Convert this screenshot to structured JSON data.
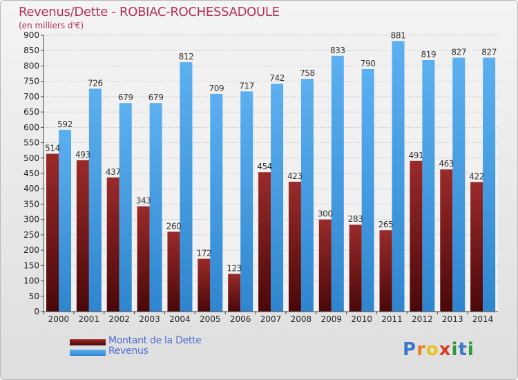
{
  "header": {
    "title": "Revenus/Dette - ROBIAC-ROCHESSADOULE",
    "subtitle": "(en milliers d'€)"
  },
  "chart_data": {
    "type": "bar",
    "title": "Revenus/Dette - ROBIAC-ROCHESSADOULE",
    "subtitle": "(en milliers d'€)",
    "xlabel": "",
    "ylabel": "",
    "ylim": [
      0,
      900
    ],
    "ytick_step": 50,
    "grid": true,
    "legend_position": "bottom-left",
    "categories": [
      "2000",
      "2001",
      "2002",
      "2003",
      "2004",
      "2005",
      "2006",
      "2007",
      "2008",
      "2009",
      "2010",
      "2011",
      "2012",
      "2013",
      "2014"
    ],
    "series": [
      {
        "name": "Montant de la Dette",
        "color": "#7a1b1b",
        "values": [
          514,
          493,
          437,
          343,
          260,
          172,
          123,
          454,
          423,
          300,
          283,
          265,
          491,
          463,
          422
        ]
      },
      {
        "name": "Revenus",
        "color": "#4fa3e8",
        "values": [
          592,
          726,
          679,
          679,
          812,
          709,
          717,
          742,
          758,
          833,
          790,
          881,
          819,
          827,
          827
        ]
      }
    ]
  },
  "legend": {
    "items": [
      {
        "label": "Montant de la Dette",
        "color": "#7a1b1b"
      },
      {
        "label": "Revenus",
        "color": "#4fa3e8"
      }
    ]
  },
  "logo": {
    "letters": [
      "P",
      "r",
      "o",
      "x",
      "i",
      "t",
      "i"
    ],
    "colors": [
      "#3a78c9",
      "#e8821e",
      "#e8c41e",
      "#d93b2b",
      "#2a9a3a",
      "#3a78c9",
      "#2a9a3a"
    ]
  }
}
